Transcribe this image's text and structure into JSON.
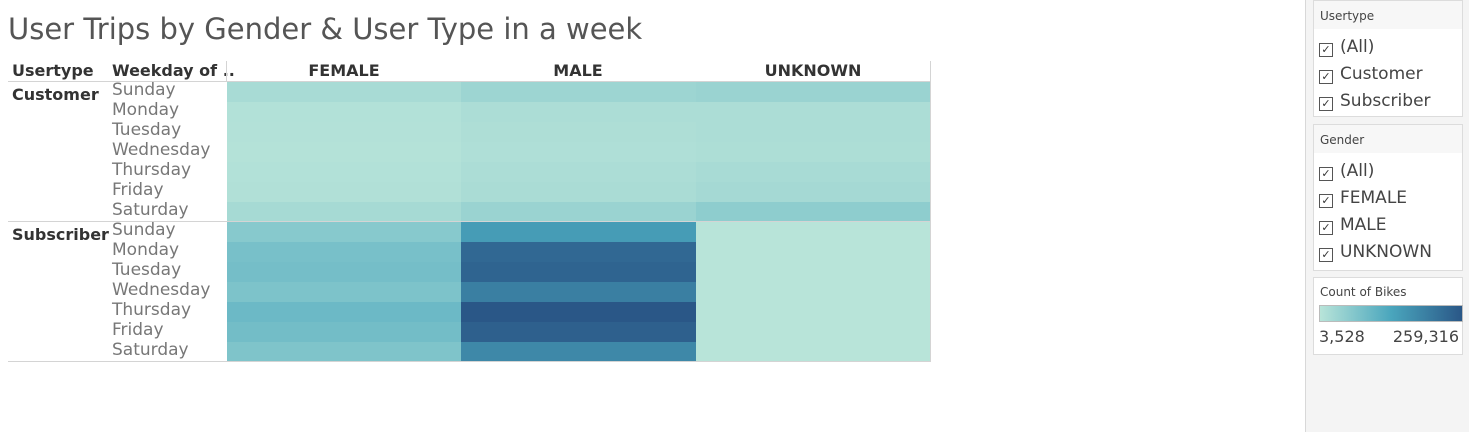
{
  "title": "User Trips by Gender & User Type in a week",
  "headers": {
    "usertype": "Usertype",
    "weekday": "Weekday of ..",
    "columns": [
      "FEMALE",
      "MALE",
      "UNKNOWN"
    ]
  },
  "chart_data": {
    "type": "heatmap",
    "title": "User Trips by Gender & User Type in a week",
    "columns": [
      "FEMALE",
      "MALE",
      "UNKNOWN"
    ],
    "row_groups": [
      "Customer",
      "Subscriber"
    ],
    "days": [
      "Sunday",
      "Monday",
      "Tuesday",
      "Wednesday",
      "Thursday",
      "Friday",
      "Saturday"
    ],
    "value_range": [
      3528,
      259316
    ],
    "values": {
      "Customer": [
        [
          22000,
          35000,
          38000
        ],
        [
          10000,
          17000,
          18000
        ],
        [
          9000,
          15000,
          17000
        ],
        [
          8000,
          14000,
          16000
        ],
        [
          10000,
          17000,
          22000
        ],
        [
          12000,
          20000,
          26000
        ],
        [
          25000,
          38000,
          52000
        ]
      ],
      "Subscriber": [
        [
          60000,
          148000,
          4000
        ],
        [
          78000,
          232000,
          3600
        ],
        [
          82000,
          238000,
          3600
        ],
        [
          72000,
          195000,
          3600
        ],
        [
          92000,
          259316,
          3528
        ],
        [
          84000,
          245000,
          3600
        ],
        [
          70000,
          180000,
          3800
        ]
      ]
    }
  },
  "panel": {
    "usertype": {
      "title": "Usertype",
      "items": [
        "(All)",
        "Customer",
        "Subscriber"
      ]
    },
    "gender": {
      "title": "Gender",
      "items": [
        "(All)",
        "FEMALE",
        "MALE",
        "UNKNOWN"
      ]
    },
    "legend": {
      "title": "Count of Bikes",
      "min": "3,528",
      "max": "259,316"
    },
    "check_glyph": "✓",
    "colors": {
      "low": "#b8e4d9",
      "mid": "#4aa6bd",
      "high": "#2a5787"
    }
  }
}
